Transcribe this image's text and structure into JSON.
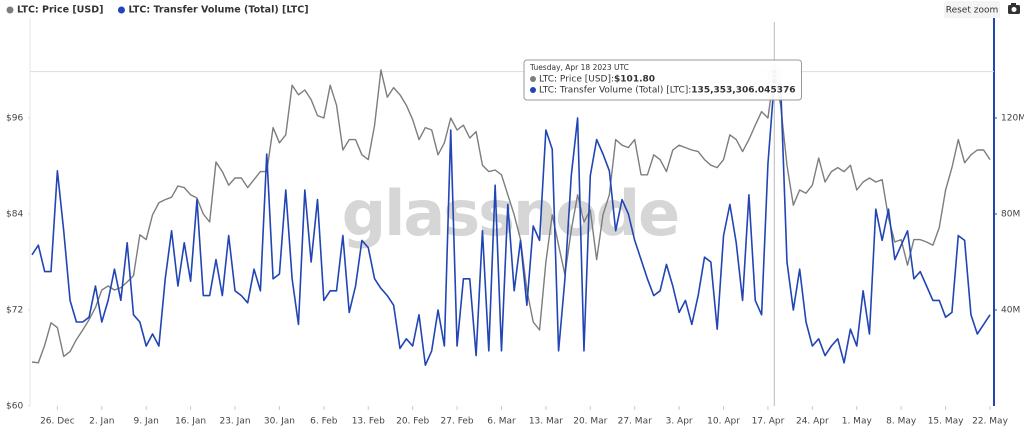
{
  "chart_data": {
    "type": "line",
    "watermark": "glassnode",
    "reset_button": "Reset zoom",
    "x": [
      "2022-12-22",
      "2022-12-23",
      "2022-12-24",
      "2022-12-25",
      "2022-12-26",
      "2022-12-27",
      "2022-12-28",
      "2022-12-29",
      "2022-12-30",
      "2022-12-31",
      "2023-01-01",
      "2023-01-02",
      "2023-01-03",
      "2023-01-04",
      "2023-01-05",
      "2023-01-06",
      "2023-01-07",
      "2023-01-08",
      "2023-01-09",
      "2023-01-10",
      "2023-01-11",
      "2023-01-12",
      "2023-01-13",
      "2023-01-14",
      "2023-01-15",
      "2023-01-16",
      "2023-01-17",
      "2023-01-18",
      "2023-01-19",
      "2023-01-20",
      "2023-01-21",
      "2023-01-22",
      "2023-01-23",
      "2023-01-24",
      "2023-01-25",
      "2023-01-26",
      "2023-01-27",
      "2023-01-28",
      "2023-01-29",
      "2023-01-30",
      "2023-01-31",
      "2023-02-01",
      "2023-02-02",
      "2023-02-03",
      "2023-02-04",
      "2023-02-05",
      "2023-02-06",
      "2023-02-07",
      "2023-02-08",
      "2023-02-09",
      "2023-02-10",
      "2023-02-11",
      "2023-02-12",
      "2023-02-13",
      "2023-02-14",
      "2023-02-15",
      "2023-02-16",
      "2023-02-17",
      "2023-02-18",
      "2023-02-19",
      "2023-02-20",
      "2023-02-21",
      "2023-02-22",
      "2023-02-23",
      "2023-02-24",
      "2023-02-25",
      "2023-02-26",
      "2023-02-27",
      "2023-02-28",
      "2023-03-01",
      "2023-03-02",
      "2023-03-03",
      "2023-03-04",
      "2023-03-05",
      "2023-03-06",
      "2023-03-07",
      "2023-03-08",
      "2023-03-09",
      "2023-03-10",
      "2023-03-11",
      "2023-03-12",
      "2023-03-13",
      "2023-03-14",
      "2023-03-15",
      "2023-03-16",
      "2023-03-17",
      "2023-03-18",
      "2023-03-19",
      "2023-03-20",
      "2023-03-21",
      "2023-03-22",
      "2023-03-23",
      "2023-03-24",
      "2023-03-25",
      "2023-03-26",
      "2023-03-27",
      "2023-03-28",
      "2023-03-29",
      "2023-03-30",
      "2023-03-31",
      "2023-04-01",
      "2023-04-02",
      "2023-04-03",
      "2023-04-04",
      "2023-04-05",
      "2023-04-06",
      "2023-04-07",
      "2023-04-08",
      "2023-04-09",
      "2023-04-10",
      "2023-04-11",
      "2023-04-12",
      "2023-04-13",
      "2023-04-14",
      "2023-04-15",
      "2023-04-16",
      "2023-04-17",
      "2023-04-18",
      "2023-04-19",
      "2023-04-20",
      "2023-04-21",
      "2023-04-22",
      "2023-04-23",
      "2023-04-24",
      "2023-04-25",
      "2023-04-26",
      "2023-04-27",
      "2023-04-28",
      "2023-04-29",
      "2023-04-30",
      "2023-05-01",
      "2023-05-02",
      "2023-05-03",
      "2023-05-04",
      "2023-05-05",
      "2023-05-06",
      "2023-05-07",
      "2023-05-08",
      "2023-05-09",
      "2023-05-10",
      "2023-05-11",
      "2023-05-12",
      "2023-05-13",
      "2023-05-14",
      "2023-05-15",
      "2023-05-16",
      "2023-05-17",
      "2023-05-18",
      "2023-05-19",
      "2023-05-20",
      "2023-05-21",
      "2023-05-22"
    ],
    "xlim": [
      "2022-12-22",
      "2023-05-22"
    ],
    "xticks": [
      {
        "value": "2022-12-26",
        "label": "26. Dec"
      },
      {
        "value": "2023-01-02",
        "label": "2. Jan"
      },
      {
        "value": "2023-01-09",
        "label": "9. Jan"
      },
      {
        "value": "2023-01-16",
        "label": "16. Jan"
      },
      {
        "value": "2023-01-23",
        "label": "23. Jan"
      },
      {
        "value": "2023-01-30",
        "label": "30. Jan"
      },
      {
        "value": "2023-02-06",
        "label": "6. Feb"
      },
      {
        "value": "2023-02-13",
        "label": "13. Feb"
      },
      {
        "value": "2023-02-20",
        "label": "20. Feb"
      },
      {
        "value": "2023-02-27",
        "label": "27. Feb"
      },
      {
        "value": "2023-03-06",
        "label": "6. Mar"
      },
      {
        "value": "2023-03-13",
        "label": "13. Mar"
      },
      {
        "value": "2023-03-20",
        "label": "20. Mar"
      },
      {
        "value": "2023-03-27",
        "label": "27. Mar"
      },
      {
        "value": "2023-04-03",
        "label": "3. Apr"
      },
      {
        "value": "2023-04-10",
        "label": "10. Apr"
      },
      {
        "value": "2023-04-17",
        "label": "17. Apr"
      },
      {
        "value": "2023-04-24",
        "label": "24. Apr"
      },
      {
        "value": "2023-05-01",
        "label": "1. May"
      },
      {
        "value": "2023-05-08",
        "label": "8. May"
      },
      {
        "value": "2023-05-15",
        "label": "15. May"
      },
      {
        "value": "2023-05-22",
        "label": "22. May"
      }
    ],
    "ylim": [
      60,
      108
    ],
    "yticks": [
      {
        "value": 60,
        "label": "$60"
      },
      {
        "value": 72,
        "label": "$72"
      },
      {
        "value": 84,
        "label": "$84"
      },
      {
        "value": 96,
        "label": "$96"
      }
    ],
    "y2lim": [
      0,
      160000000
    ],
    "y2ticks": [
      {
        "value": 40000000,
        "label": "40M"
      },
      {
        "value": 80000000,
        "label": "80M"
      },
      {
        "value": 120000000,
        "label": "120M"
      }
    ],
    "series": [
      {
        "name": "LTC: Price [USD]",
        "color": "#7d7d7d",
        "values": [
          65.5,
          65.4,
          67.6,
          70.4,
          69.8,
          66.2,
          66.8,
          68.3,
          69.5,
          70.8,
          72.3,
          74.5,
          75.0,
          74.5,
          74.8,
          75.5,
          76.3,
          81.4,
          80.8,
          83.9,
          85.4,
          85.8,
          86.1,
          87.5,
          87.3,
          86.4,
          86.0,
          84.0,
          83.0,
          90.5,
          89.3,
          87.6,
          88.5,
          88.5,
          87.3,
          88.3,
          89.3,
          89.3,
          94.8,
          92.9,
          93.9,
          100.1,
          98.9,
          99.5,
          98.3,
          96.3,
          96.0,
          100.1,
          97.6,
          92.0,
          93.3,
          93.3,
          91.4,
          90.8,
          95.1,
          102.0,
          98.6,
          99.8,
          98.9,
          97.6,
          95.8,
          93.3,
          94.8,
          94.5,
          91.4,
          92.9,
          96.0,
          94.5,
          95.1,
          93.5,
          94.3,
          90.1,
          89.3,
          89.5,
          88.9,
          86.4,
          83.9,
          80.8,
          74.5,
          70.5,
          69.5,
          78.0,
          83.9,
          80.1,
          76.4,
          82.0,
          86.4,
          83.0,
          84.5,
          78.3,
          83.9,
          86.4,
          93.3,
          92.6,
          92.3,
          93.3,
          88.9,
          88.9,
          91.4,
          90.8,
          89.3,
          92.0,
          92.6,
          92.3,
          92.0,
          91.8,
          90.8,
          90.1,
          89.8,
          90.8,
          93.9,
          93.3,
          91.8,
          93.3,
          95.1,
          96.8,
          96.0,
          101.8,
          97.6,
          90.1,
          85.1,
          87.0,
          86.6,
          87.6,
          91.0,
          88.0,
          89.3,
          89.8,
          89.3,
          90.1,
          87.0,
          88.0,
          88.5,
          88.0,
          88.3,
          83.5,
          80.5,
          80.8,
          77.6,
          80.8,
          80.8,
          80.5,
          80.1,
          82.3,
          87.0,
          89.8,
          93.3,
          90.4,
          91.4,
          92.0,
          92.0,
          90.8
        ]
      },
      {
        "name": "LTC: Transfer Volume (Total) [LTC]",
        "color": "#2145b5",
        "axis": "y2",
        "values": [
          63000000,
          67000000,
          56000000,
          56000000,
          98000000,
          73000000,
          44000000,
          35000000,
          35000000,
          37000000,
          50000000,
          35000000,
          44000000,
          57000000,
          44000000,
          68000000,
          38000000,
          35000000,
          25000000,
          30000000,
          25000000,
          53000000,
          73000000,
          50000000,
          68000000,
          52000000,
          86000000,
          46000000,
          46000000,
          61000000,
          46000000,
          71000000,
          48000000,
          46000000,
          43000000,
          57000000,
          48000000,
          105000000,
          53000000,
          55000000,
          90000000,
          53000000,
          34000000,
          90000000,
          60000000,
          86000000,
          44000000,
          48000000,
          48000000,
          71000000,
          39000000,
          50000000,
          69000000,
          66000000,
          53000000,
          49000000,
          46000000,
          42000000,
          24000000,
          28000000,
          25000000,
          38000000,
          17000000,
          23000000,
          40000000,
          25000000,
          115000000,
          25000000,
          53000000,
          53000000,
          21000000,
          73000000,
          23000000,
          92000000,
          23000000,
          84000000,
          48000000,
          69000000,
          42000000,
          75000000,
          69000000,
          115000000,
          107000000,
          23000000,
          53000000,
          96000000,
          120000000,
          23000000,
          96000000,
          111000000,
          105000000,
          98000000,
          73000000,
          86000000,
          80000000,
          69000000,
          61000000,
          53000000,
          46000000,
          48000000,
          59000000,
          50000000,
          39000000,
          44000000,
          34000000,
          46000000,
          62000000,
          60000000,
          32000000,
          71000000,
          84000000,
          68000000,
          44000000,
          88000000,
          44000000,
          38000000,
          101000000,
          135353306.045376,
          134000000,
          60000000,
          40000000,
          57000000,
          35000000,
          25000000,
          28000000,
          21000000,
          25000000,
          28000000,
          18000000,
          32000000,
          25000000,
          48000000,
          30000000,
          82000000,
          69000000,
          82000000,
          61000000,
          67000000,
          73000000,
          53000000,
          56000000,
          50000000,
          44000000,
          44000000,
          37000000,
          39000000,
          71000000,
          69000000,
          38000000,
          30000000,
          34000000,
          38000000
        ]
      }
    ],
    "tooltip": {
      "index": 117,
      "date": "Tuesday, Apr 18 2023 UTC",
      "items": [
        {
          "label": "LTC: Price [USD]: ",
          "value": "$101.80"
        },
        {
          "label": "LTC: Transfer Volume (Total) [LTC]: ",
          "value": "135,353,306.045376"
        }
      ]
    }
  }
}
